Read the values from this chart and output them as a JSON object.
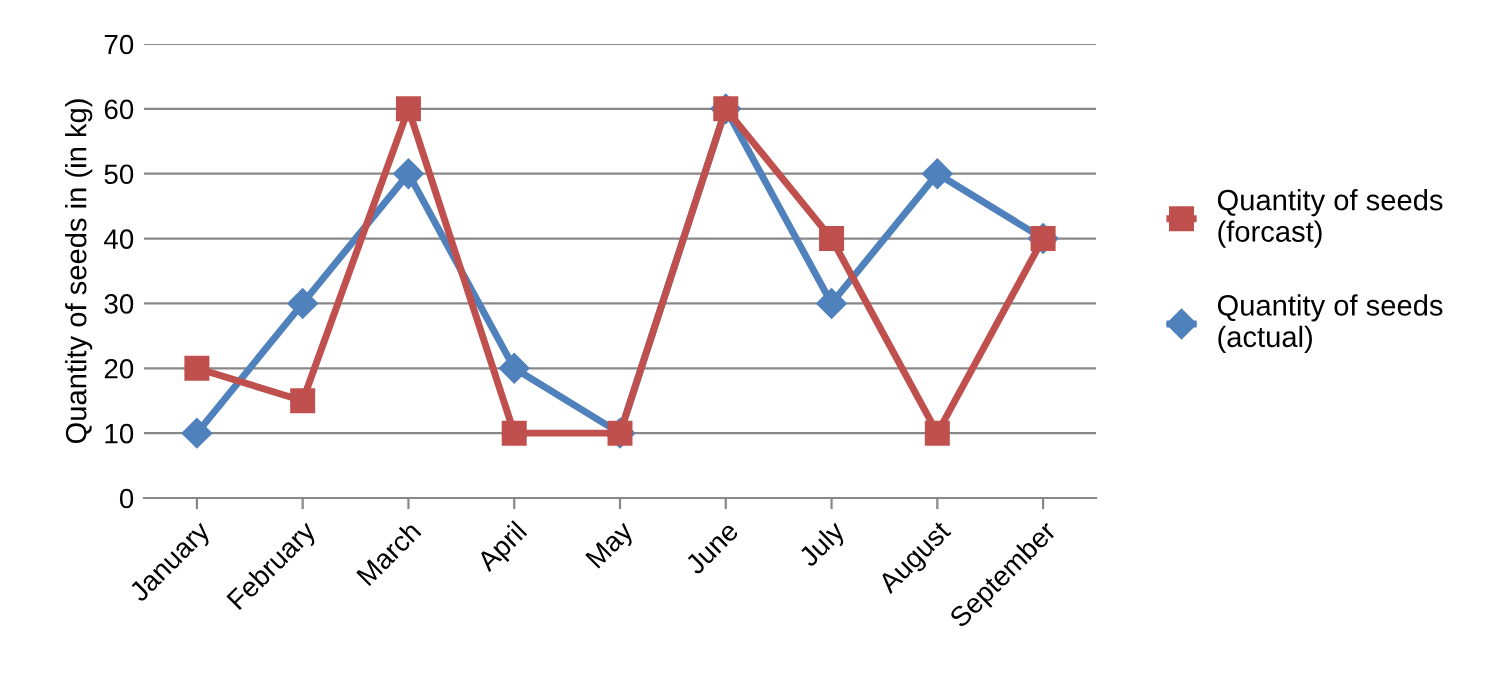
{
  "chart_data": {
    "type": "line",
    "ylabel": "Quantity of seeds in (in kg)",
    "categories": [
      "January",
      "February",
      "March",
      "April",
      "May",
      "June",
      "July",
      "August",
      "September"
    ],
    "series": [
      {
        "name": "Quantity of seeds\n(forcast)",
        "color": "#c0504d",
        "marker": "square",
        "values": [
          20,
          15,
          60,
          10,
          10,
          60,
          40,
          10,
          40
        ]
      },
      {
        "name": "Quantity of seeds\n(actual)",
        "color": "#4f81bd",
        "marker": "diamond",
        "values": [
          10,
          30,
          50,
          20,
          10,
          60,
          30,
          50,
          40
        ]
      }
    ],
    "ylim": [
      0,
      70
    ],
    "yticks": [
      0,
      10,
      20,
      30,
      40,
      50,
      60,
      70
    ],
    "grid": "y",
    "legend": "right",
    "line_style": "solid"
  }
}
